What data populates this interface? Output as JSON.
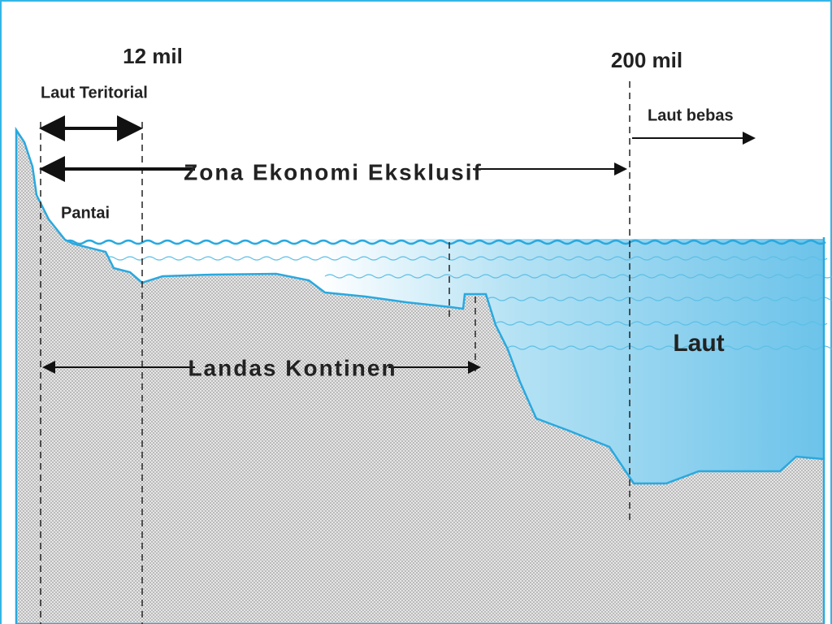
{
  "labels": {
    "territorial_limit": "12 mil",
    "eez_limit": "200 mil",
    "territorial_sea": "Laut Teritorial",
    "high_seas": "Laut bebas",
    "eez": "Zona Ekonomi Eksklusif",
    "coast": "Pantai",
    "continental_shelf": "Landas Kontinen",
    "sea": "Laut"
  }
}
